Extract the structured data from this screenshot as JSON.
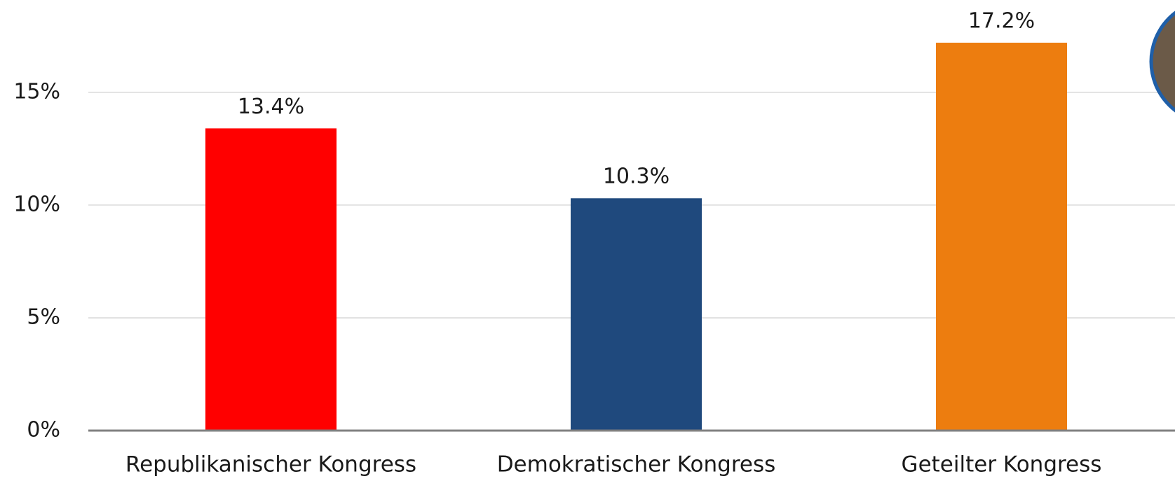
{
  "chart_data": {
    "type": "bar",
    "categories": [
      "Republikanischer Kongress",
      "Demokratischer Kongress",
      "Geteilter Kongress"
    ],
    "values": [
      13.4,
      10.3,
      17.2
    ],
    "value_labels": [
      "13.4%",
      "10.3%",
      "17.2%"
    ],
    "colors": [
      "#ff0000",
      "#1f497d",
      "#ed7d0f"
    ],
    "ylim": [
      0,
      19
    ],
    "yticks": [
      {
        "value": 0,
        "label": "0%"
      },
      {
        "value": 5,
        "label": "5%"
      },
      {
        "value": 10,
        "label": "10%"
      },
      {
        "value": 15,
        "label": "15%"
      }
    ],
    "grid": true
  }
}
